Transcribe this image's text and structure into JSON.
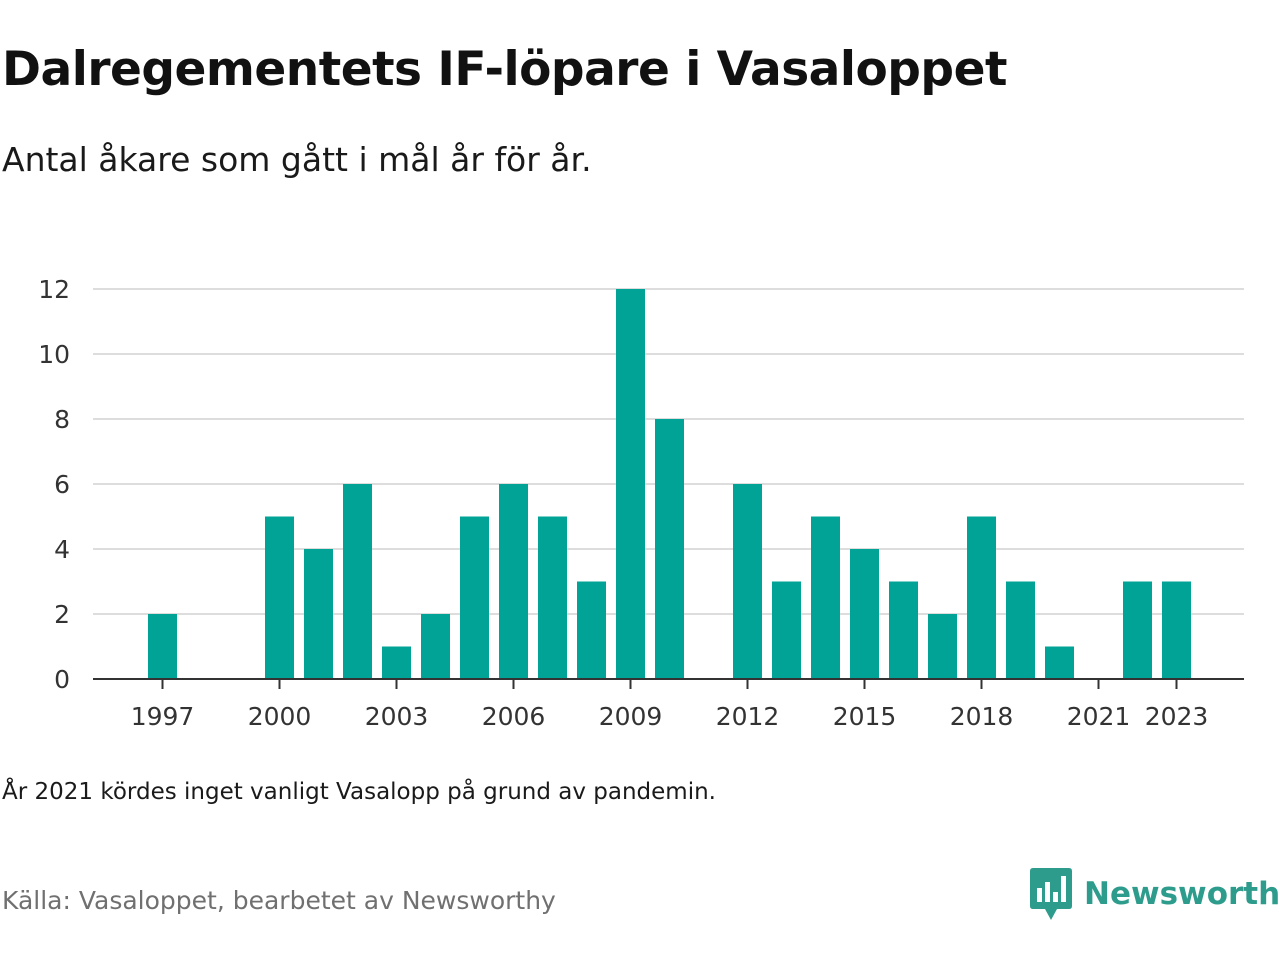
{
  "header": {
    "title": "Dalregementets IF-löpare i Vasaloppet",
    "subtitle": "Antal åkare som gått i mål år för år."
  },
  "footer": {
    "note": "År 2021 kördes inget vanligt Vasalopp på grund av pandemin.",
    "source": "Källa: Vasaloppet, bearbetet av Newsworthy",
    "brand": "Newsworthy",
    "brand_icon": "newsworthy-logo-icon"
  },
  "colors": {
    "bar": "#00a396",
    "brand": "#2e9c8d",
    "grid": "#dddddd",
    "axis": "#333333"
  },
  "chart_data": {
    "type": "bar",
    "categories": [
      1997,
      1998,
      1999,
      2000,
      2001,
      2002,
      2003,
      2004,
      2005,
      2006,
      2007,
      2008,
      2009,
      2010,
      2011,
      2012,
      2013,
      2014,
      2015,
      2016,
      2017,
      2018,
      2019,
      2020,
      2021,
      2022,
      2023
    ],
    "values": [
      2,
      0,
      0,
      5,
      4,
      6,
      1,
      2,
      5,
      6,
      5,
      3,
      12,
      8,
      0,
      6,
      3,
      5,
      4,
      3,
      2,
      5,
      3,
      1,
      0,
      3,
      3
    ],
    "x_tick_labels": [
      "1997",
      "2000",
      "2003",
      "2006",
      "2009",
      "2012",
      "2015",
      "2018",
      "2021",
      "2023"
    ],
    "y_ticks": [
      0,
      2,
      4,
      6,
      8,
      10,
      12
    ],
    "ylim": [
      0,
      12
    ],
    "xlabel": "",
    "ylabel": "",
    "grid": true,
    "legend": "none"
  }
}
